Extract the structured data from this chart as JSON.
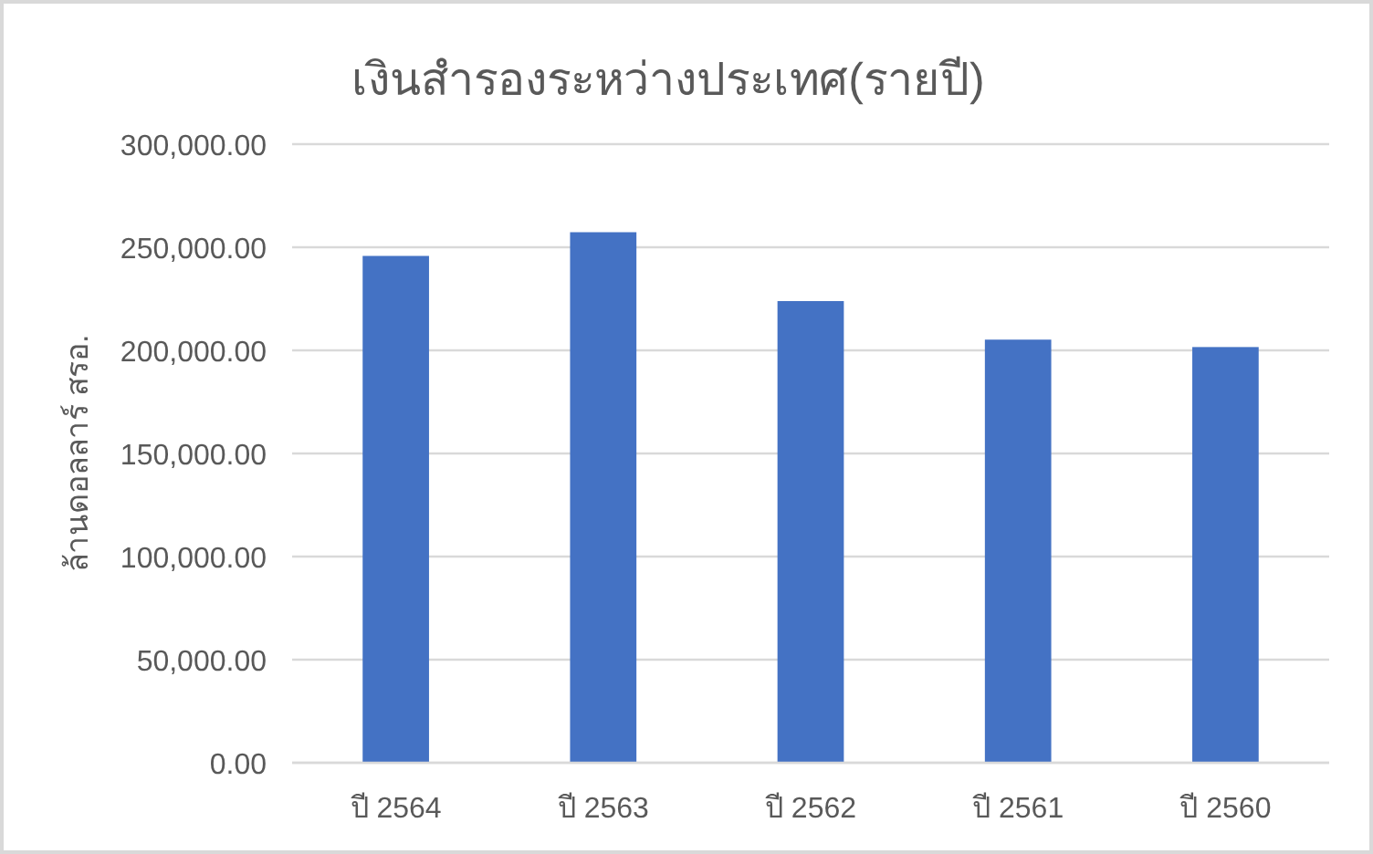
{
  "chart_data": {
    "type": "bar",
    "title": "เงินสำรองระหว่างประเทศ(รายปี)",
    "ylabel": "ล้านดอลลาร์ สรอ.",
    "categories": [
      "ปี 2564",
      "ปี 2563",
      "ปี 2562",
      "ปี 2561",
      "ปี 2560"
    ],
    "values": [
      245800,
      257300,
      223900,
      205200,
      201600
    ],
    "color": "#4472c4",
    "ylim": [
      0,
      300000
    ],
    "yticks": [
      {
        "value": 0,
        "label": "0.00"
      },
      {
        "value": 50000,
        "label": "50,000.00"
      },
      {
        "value": 100000,
        "label": "100,000.00"
      },
      {
        "value": 150000,
        "label": "150,000.00"
      },
      {
        "value": 200000,
        "label": "200,000.00"
      },
      {
        "value": 250000,
        "label": "250,000.00"
      },
      {
        "value": 300000,
        "label": "300,000.00"
      }
    ],
    "grid": "y"
  }
}
